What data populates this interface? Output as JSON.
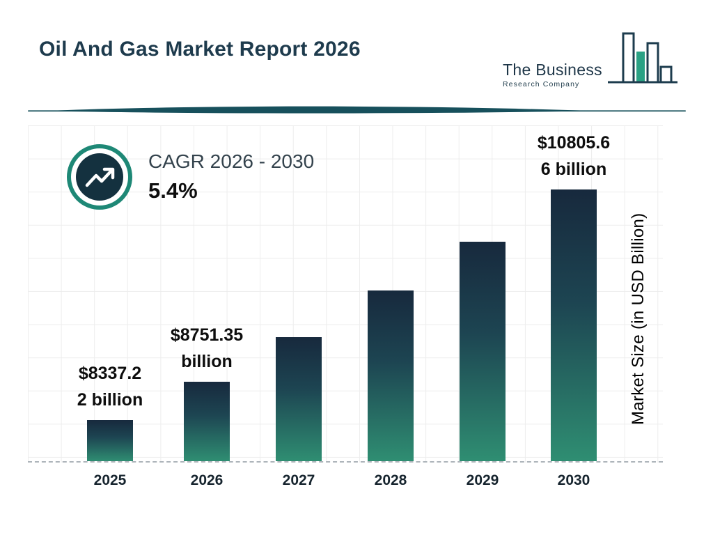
{
  "header": {
    "title": "Oil And Gas Market Report 2026",
    "logo": {
      "line1": "The Business",
      "line2": "Research Company"
    }
  },
  "cagr": {
    "label": "CAGR 2026 - 2030",
    "value": "5.4%"
  },
  "chart_data": {
    "type": "bar",
    "categories": [
      "2025",
      "2026",
      "2027",
      "2028",
      "2029",
      "2030"
    ],
    "values": [
      8337.22,
      8751.35,
      9223.92,
      9722.01,
      10247.0,
      10805.66
    ],
    "values_estimated": [
      false,
      false,
      true,
      true,
      true,
      false
    ],
    "bar_labels": [
      [
        "$8337.2",
        "2 billion"
      ],
      [
        "$8751.35",
        "billion"
      ],
      null,
      null,
      null,
      [
        "$10805.6",
        "6 billion"
      ]
    ],
    "title": "Oil And Gas Market Report 2026",
    "xlabel": "",
    "ylabel": "Market Size (in USD Billion)",
    "value_axis_min": 7900,
    "value_axis_max": 10805.66,
    "legend": "none",
    "grid": "on",
    "colors": {
      "bar_top": "#17293d",
      "bar_bottom": "#2f8e72",
      "accent_teal": "#1e8876",
      "dark_navy": "#14313f",
      "title_color": "#1e3b4d"
    }
  }
}
